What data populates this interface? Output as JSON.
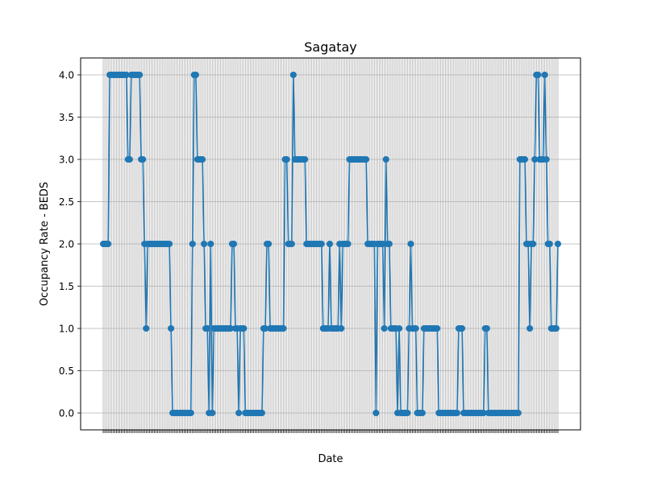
{
  "chart_data": {
    "type": "line",
    "title": "Sagatay",
    "xlabel": "Date",
    "ylabel": "Occupancy Rate - BEDS",
    "ylim": [
      -0.2,
      4.2
    ],
    "yticks": [
      "0.0",
      "0.5",
      "1.0",
      "1.5",
      "2.0",
      "2.5",
      "3.0",
      "3.5",
      "4.0"
    ],
    "grid": true,
    "marker": "circle",
    "color": "#1f77b4",
    "x_tick_labels_overlapping": true,
    "values": [
      2,
      2,
      2,
      2,
      4,
      4,
      4,
      4,
      4,
      4,
      4,
      4,
      4,
      4,
      4,
      3,
      3,
      4,
      4,
      4,
      4,
      4,
      4,
      3,
      3,
      2,
      1,
      2,
      2,
      2,
      2,
      2,
      2,
      2,
      2,
      2,
      2,
      2,
      2,
      2,
      2,
      1,
      0,
      0,
      0,
      0,
      0,
      0,
      0,
      0,
      0,
      0,
      0,
      0,
      2,
      4,
      4,
      3,
      3,
      3,
      3,
      2,
      1,
      1,
      0,
      2,
      0,
      1,
      1,
      1,
      1,
      1,
      1,
      1,
      1,
      1,
      1,
      1,
      2,
      2,
      1,
      1,
      0,
      1,
      1,
      1,
      0,
      0,
      0,
      0,
      0,
      0,
      0,
      0,
      0,
      0,
      0,
      1,
      1,
      2,
      2,
      1,
      1,
      1,
      1,
      1,
      1,
      1,
      1,
      1,
      3,
      3,
      2,
      2,
      2,
      4,
      3,
      3,
      3,
      3,
      3,
      3,
      3,
      2,
      2,
      2,
      2,
      2,
      2,
      2,
      2,
      2,
      2,
      1,
      1,
      1,
      1,
      2,
      1,
      1,
      1,
      1,
      1,
      2,
      1,
      2,
      2,
      2,
      2,
      3,
      3,
      3,
      3,
      3,
      3,
      3,
      3,
      3,
      3,
      3,
      2,
      2,
      2,
      2,
      2,
      0,
      2,
      2,
      2,
      2,
      1,
      3,
      2,
      2,
      1,
      1,
      1,
      1,
      0,
      1,
      0,
      0,
      0,
      0,
      0,
      1,
      2,
      1,
      1,
      1,
      0,
      0,
      0,
      0,
      1,
      1,
      1,
      1,
      1,
      1,
      1,
      1,
      1,
      0,
      0,
      0,
      0,
      0,
      0,
      0,
      0,
      0,
      0,
      0,
      0,
      1,
      1,
      1,
      0,
      0,
      0,
      0,
      0,
      0,
      0,
      0,
      0,
      0,
      0,
      0,
      0,
      1,
      1,
      0,
      0,
      0,
      0,
      0,
      0,
      0,
      0,
      0,
      0,
      0,
      0,
      0,
      0,
      0,
      0,
      0,
      0,
      0,
      3,
      3,
      3,
      3,
      2,
      2,
      1,
      2,
      2,
      3,
      4,
      4,
      3,
      3,
      3,
      4,
      3,
      2,
      2,
      1,
      1,
      1,
      1,
      2
    ]
  }
}
